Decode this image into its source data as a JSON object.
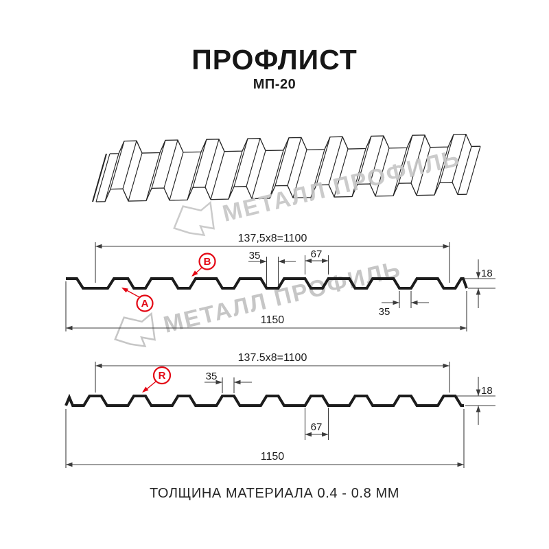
{
  "header": {
    "title": "ПРОФЛИСТ",
    "subtitle": "МП-20"
  },
  "footer": {
    "text": "ТОЛЩИНА МАТЕРИАЛА 0.4 - 0.8 ММ"
  },
  "watermark": {
    "brand": "МЕТАЛЛ ПРОФИЛЬ"
  },
  "colors": {
    "accent": "#e30613",
    "line": "#1c1c1c",
    "dim_line": "#3c3c3c",
    "watermark": "#c6c6c6"
  },
  "section_a": {
    "point_labels": {
      "a": "A",
      "b": "B"
    },
    "dims": {
      "modules": "137,5x8=1100",
      "overall": "1150",
      "groove_bottom": "35",
      "groove_bottom_right": "35",
      "groove_opening": "67",
      "height": "18"
    }
  },
  "section_r": {
    "point_labels": {
      "r": "R"
    },
    "dims": {
      "modules": "137.5x8=1100",
      "overall": "1150",
      "rib_top": "35",
      "rib_base": "67",
      "height": "18"
    }
  }
}
